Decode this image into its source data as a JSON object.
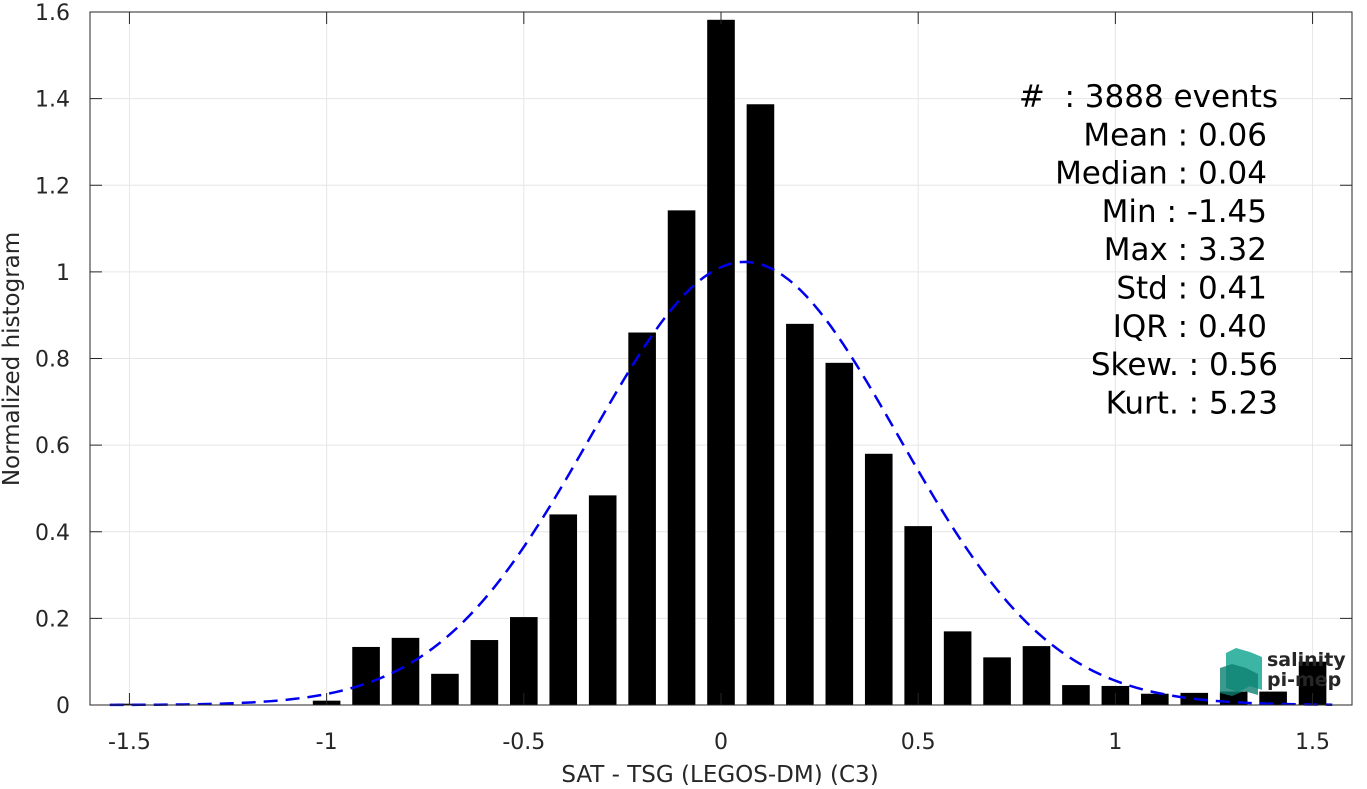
{
  "chart_data": {
    "type": "bar",
    "xlabel": "SAT - TSG (LEGOS-DM) (C3)",
    "ylabel": "Normalized histogram",
    "xlim": [
      -1.6,
      1.6
    ],
    "ylim": [
      0,
      1.6
    ],
    "grid": true,
    "x_ticks": [
      -1.5,
      -1,
      -0.5,
      0,
      0.5,
      1,
      1.5
    ],
    "x_tick_labels": [
      "-1.5",
      "-1",
      "-0.5",
      "0",
      "0.5",
      "1",
      "1.5"
    ],
    "y_ticks": [
      0,
      0.2,
      0.4,
      0.6,
      0.8,
      1,
      1.2,
      1.4,
      1.6
    ],
    "y_tick_labels": [
      "0",
      "0.2",
      "0.4",
      "0.6",
      "0.8",
      "1",
      "1.2",
      "1.4",
      "1.6"
    ],
    "bin_width": 0.1,
    "bins": {
      "x": [
        -1.5,
        -1.4,
        -1.3,
        -1.2,
        -1.1,
        -1.0,
        -0.9,
        -0.8,
        -0.7,
        -0.6,
        -0.5,
        -0.4,
        -0.3,
        -0.2,
        -0.1,
        0.0,
        0.1,
        0.2,
        0.3,
        0.4,
        0.5,
        0.6,
        0.7,
        0.8,
        0.9,
        1.0,
        1.1,
        1.2,
        1.3,
        1.4,
        1.5
      ],
      "values": [
        0.003,
        0.0,
        0.0,
        0.0,
        0.0,
        0.01,
        0.134,
        0.155,
        0.072,
        0.15,
        0.203,
        0.44,
        0.484,
        0.86,
        1.142,
        1.582,
        1.387,
        0.88,
        0.79,
        0.58,
        0.413,
        0.17,
        0.11,
        0.136,
        0.046,
        0.044,
        0.026,
        0.028,
        0.031,
        0.031,
        0.1
      ]
    },
    "fit_curve": {
      "style": "dashed",
      "color": "#0000ee",
      "mean": 0.06,
      "std": 0.39,
      "peak": 1.023
    },
    "bar_color": "#000000",
    "stats": [
      "#  : 3888 events",
      "Mean : 0.06",
      "Median : 0.04",
      "Min : -1.45",
      "Max : 3.32",
      "Std : 0.41",
      "IQR : 0.40",
      "Skew. : 0.56",
      "Kurt. : 5.23"
    ]
  },
  "logo": {
    "line1": "salinity",
    "line2": "pi-mep",
    "color": "#1aa894"
  }
}
